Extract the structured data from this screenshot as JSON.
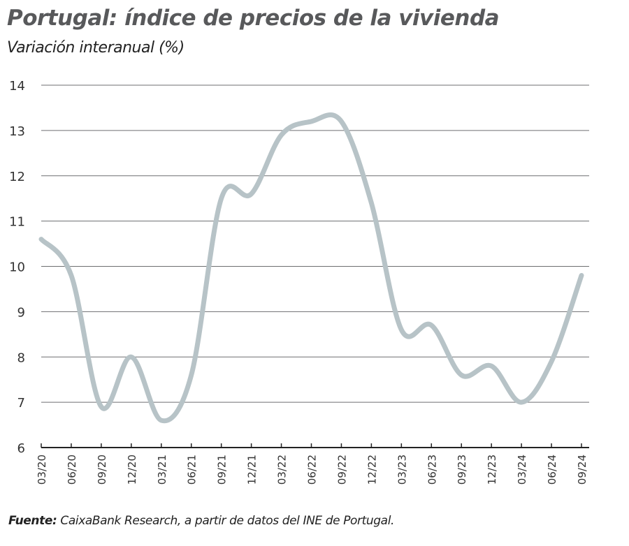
{
  "chart_data": {
    "type": "line",
    "title": "Portugal: índice de precios de la vivienda",
    "subtitle": "Variación interanual (%)",
    "xlabel": "",
    "ylabel": "",
    "ylim": [
      6,
      14
    ],
    "yticks": [
      "6",
      "7",
      "8",
      "9",
      "10",
      "11",
      "12",
      "13",
      "14"
    ],
    "grid": true,
    "categories": [
      "03/20",
      "06/20",
      "09/20",
      "12/20",
      "03/21",
      "06/21",
      "09/21",
      "12/21",
      "03/22",
      "06/22",
      "09/22",
      "12/22",
      "03/23",
      "06/23",
      "09/23",
      "12/23",
      "03/24",
      "06/24",
      "09/24"
    ],
    "series": [
      {
        "values": [
          10.6,
          9.8,
          6.9,
          8.0,
          6.6,
          7.6,
          11.5,
          11.6,
          12.9,
          13.2,
          13.2,
          11.4,
          8.6,
          8.7,
          7.6,
          7.8,
          7.0,
          7.9,
          9.8
        ],
        "color": "#b7c3c7"
      }
    ]
  },
  "source": {
    "label": "Fuente:",
    "text": " CaixaBank Research, a partir de datos del INE de Portugal."
  }
}
